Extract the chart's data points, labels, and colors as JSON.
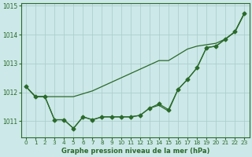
{
  "hours": [
    0,
    1,
    2,
    3,
    4,
    5,
    6,
    7,
    8,
    9,
    10,
    11,
    12,
    13,
    14,
    15,
    16,
    17,
    18,
    19,
    20,
    21,
    22,
    23
  ],
  "line_top": [
    1012.2,
    1011.85,
    1011.85,
    1011.85,
    1011.85,
    1011.85,
    1011.95,
    1012.05,
    1012.2,
    1012.35,
    1012.5,
    1012.65,
    1012.8,
    1012.95,
    1013.1,
    1013.1,
    1013.3,
    1013.5,
    1013.6,
    1013.65,
    1013.7,
    1013.85,
    1014.1,
    1014.75
  ],
  "line_mid": [
    1012.2,
    1011.85,
    1011.85,
    1011.05,
    1011.05,
    1010.75,
    1011.15,
    1011.05,
    1011.15,
    1011.15,
    1011.15,
    1011.15,
    1011.2,
    1011.45,
    1011.6,
    1011.4,
    1012.1,
    1012.45,
    1012.85,
    1013.55,
    1013.6,
    1013.85,
    1014.1,
    1014.75
  ],
  "line_bot": [
    1012.2,
    1011.85,
    1011.85,
    1011.05,
    1011.05,
    1010.75,
    1011.15,
    1011.05,
    1011.15,
    1011.15,
    1011.15,
    1011.15,
    1011.2,
    1011.45,
    1011.55,
    1011.35,
    1012.1,
    1012.45,
    1012.85,
    1013.55,
    1013.6,
    1013.85,
    1014.1,
    1014.75
  ],
  "ylim_min": 1010.45,
  "ylim_max": 1015.1,
  "yticks": [
    1011,
    1012,
    1013,
    1014,
    1015
  ],
  "line_color": "#2a6a2a",
  "bg_color": "#cce8e8",
  "grid_color": "#aacaca",
  "xlabel": "Graphe pression niveau de la mer (hPa)",
  "marker": "D",
  "markersize": 2.5
}
